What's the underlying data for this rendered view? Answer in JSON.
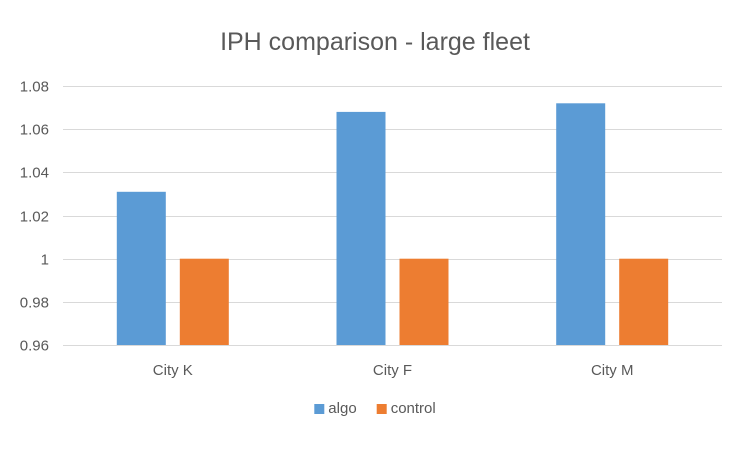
{
  "chart_data": {
    "type": "bar",
    "title": "IPH comparison - large fleet",
    "xlabel": "",
    "ylabel": "",
    "categories": [
      "City K",
      "City F",
      "City M"
    ],
    "series": [
      {
        "name": "algo",
        "color": "#5b9bd5",
        "values": [
          1.031,
          1.068,
          1.072
        ]
      },
      {
        "name": "control",
        "color": "#ed7d31",
        "values": [
          1.0,
          1.0,
          1.0
        ]
      }
    ],
    "ylim": [
      0.96,
      1.08
    ],
    "yticks": [
      "0.96",
      "0.98",
      "1",
      "1.02",
      "1.04",
      "1.06",
      "1.08"
    ],
    "grid": true,
    "legend_position": "bottom"
  }
}
